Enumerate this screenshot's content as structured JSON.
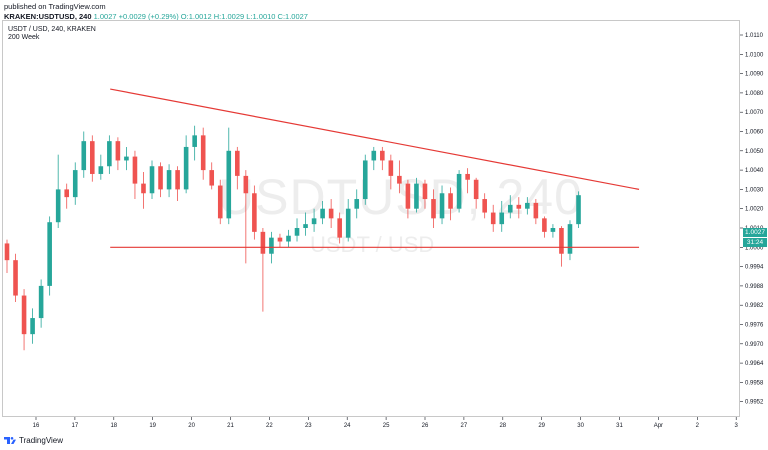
{
  "header": {
    "published": "published on TradingView.com",
    "symbol": "KRAKEN:USDTUSD, 240",
    "last": "1.0027",
    "change": "+0.0029 (+0.29%)",
    "ohlc": "O:1.0012 H:1.0029 L:1.0010 C:1.0027"
  },
  "legend": {
    "pair": "USDT / USD, 240, KRAKEN",
    "indicator": "200 Week"
  },
  "watermark": {
    "main": "USDTUSD, 240",
    "sub": "USDT / USD"
  },
  "brand": {
    "name": "TradingView",
    "icon": "tradingview-logo-icon"
  },
  "price_tag": "1.0027",
  "time_tag": "31:24",
  "colors": {
    "up": "#26a69a",
    "down": "#ef5350",
    "trendline": "#e53935",
    "axis": "#131722",
    "frame": "#c8c8c8"
  },
  "chart_data": {
    "type": "candlestick",
    "x_ticks": [
      "16",
      "17",
      "18",
      "19",
      "20",
      "21",
      "22",
      "23",
      "24",
      "25",
      "26",
      "27",
      "28",
      "29",
      "30",
      "31",
      "Apr",
      "2",
      "3"
    ],
    "y_ticks": [
      "1.0110",
      "1.0100",
      "1.0090",
      "1.0080",
      "1.0070",
      "1.0060",
      "1.0050",
      "1.0040",
      "1.0030",
      "1.0020",
      "1.0010",
      "1.0000",
      "0.9994",
      "0.9988",
      "0.9982",
      "0.9976",
      "0.9970",
      "0.9964",
      "0.9958",
      "0.9952"
    ],
    "candle_index_start": 0,
    "candles": [
      [
        1.0002,
        0.9996,
        1.0004,
        0.9992
      ],
      [
        0.9996,
        0.9985,
        0.9998,
        0.9983
      ],
      [
        0.9985,
        0.9973,
        0.9987,
        0.9968
      ],
      [
        0.9973,
        0.9978,
        0.9981,
        0.997
      ],
      [
        0.9978,
        0.9988,
        0.999,
        0.9975
      ],
      [
        0.9988,
        1.0013,
        1.0016,
        0.9985
      ],
      [
        1.0013,
        1.003,
        1.0048,
        1.001
      ],
      [
        1.003,
        1.0026,
        1.0033,
        1.002
      ],
      [
        1.0026,
        1.004,
        1.0044,
        1.0022
      ],
      [
        1.004,
        1.0055,
        1.006,
        1.0036
      ],
      [
        1.0055,
        1.0038,
        1.0058,
        1.0034
      ],
      [
        1.0038,
        1.0042,
        1.0048,
        1.0035
      ],
      [
        1.0042,
        1.0055,
        1.0058,
        1.0038
      ],
      [
        1.0055,
        1.0045,
        1.0057,
        1.004
      ],
      [
        1.0045,
        1.0047,
        1.0052,
        1.004
      ],
      [
        1.0047,
        1.0033,
        1.005,
        1.0025
      ],
      [
        1.0033,
        1.0028,
        1.0039,
        1.002
      ],
      [
        1.0028,
        1.0042,
        1.0045,
        1.0025
      ],
      [
        1.0042,
        1.003,
        1.0044,
        1.0026
      ],
      [
        1.003,
        1.004,
        1.0043,
        1.0026
      ],
      [
        1.004,
        1.003,
        1.0042,
        1.0024
      ],
      [
        1.003,
        1.0052,
        1.0058,
        1.0028
      ],
      [
        1.0052,
        1.0058,
        1.0063,
        1.0045
      ],
      [
        1.0058,
        1.004,
        1.0062,
        1.0035
      ],
      [
        1.004,
        1.0032,
        1.0044,
        1.003
      ],
      [
        1.0032,
        1.0015,
        1.0035,
        1.0012
      ],
      [
        1.0015,
        1.005,
        1.0062,
        1.0012
      ],
      [
        1.005,
        1.0037,
        1.0052,
        1.003
      ],
      [
        1.0037,
        1.0028,
        1.004,
        0.9995
      ],
      [
        1.0028,
        1.0008,
        1.0032,
        1.0004
      ],
      [
        1.0008,
        0.9998,
        1.001,
        0.998
      ],
      [
        0.9998,
        1.0005,
        1.0008,
        0.9995
      ],
      [
        1.0005,
        1.0003,
        1.0007,
        1.0
      ],
      [
        1.0003,
        1.0006,
        1.0009,
        1.0
      ],
      [
        1.0006,
        1.001,
        1.0015,
        1.0003
      ],
      [
        1.001,
        1.0012,
        1.0018,
        1.0006
      ],
      [
        1.0012,
        1.0015,
        1.002,
        1.0008
      ],
      [
        1.0015,
        1.002,
        1.0024,
        1.0012
      ],
      [
        1.002,
        1.0015,
        1.0025,
        1.001
      ],
      [
        1.0015,
        1.0005,
        1.0018,
        1.0002
      ],
      [
        1.0005,
        1.002,
        1.0025,
        1.0003
      ],
      [
        1.002,
        1.0025,
        1.003,
        1.0015
      ],
      [
        1.0025,
        1.0045,
        1.0048,
        1.0022
      ],
      [
        1.0045,
        1.005,
        1.0052,
        1.004
      ],
      [
        1.005,
        1.0045,
        1.0052,
        1.004
      ],
      [
        1.0045,
        1.0037,
        1.0048,
        1.003
      ],
      [
        1.0037,
        1.0033,
        1.0045,
        1.0028
      ],
      [
        1.0033,
        1.002,
        1.0035,
        1.0015
      ],
      [
        1.002,
        1.0033,
        1.0036,
        1.0018
      ],
      [
        1.0033,
        1.0025,
        1.0035,
        1.002
      ],
      [
        1.0025,
        1.0015,
        1.003,
        1.001
      ],
      [
        1.0015,
        1.0028,
        1.0032,
        1.0012
      ],
      [
        1.0028,
        1.002,
        1.0031,
        1.0014
      ],
      [
        1.002,
        1.0038,
        1.004,
        1.0018
      ],
      [
        1.0038,
        1.0035,
        1.0041,
        1.0028
      ],
      [
        1.0035,
        1.0025,
        1.0036,
        1.002
      ],
      [
        1.0025,
        1.0018,
        1.0028,
        1.0015
      ],
      [
        1.0018,
        1.0012,
        1.0022,
        1.0008
      ],
      [
        1.0012,
        1.0018,
        1.0024,
        1.0008
      ],
      [
        1.0018,
        1.0022,
        1.0027,
        1.0015
      ],
      [
        1.0022,
        1.002,
        1.0026,
        1.0015
      ],
      [
        1.002,
        1.0023,
        1.0026,
        1.0017
      ],
      [
        1.0023,
        1.0015,
        1.0025,
        1.0012
      ],
      [
        1.0015,
        1.0008,
        1.0016,
        1.0005
      ],
      [
        1.0008,
        1.001,
        1.0012,
        1.0005
      ],
      [
        1.001,
        0.9998,
        1.0011,
        0.9994
      ],
      [
        0.9998,
        1.0012,
        1.0014,
        0.9996
      ],
      [
        1.0012,
        1.0027,
        1.0029,
        1.001
      ]
    ],
    "trendlines": [
      {
        "name": "resistance",
        "from": [
          0.1435,
          1.0082
        ],
        "to": [
          0.8321,
          1.003
        ]
      },
      {
        "name": "support",
        "from": [
          0.1435,
          1.0
        ],
        "to": [
          0.8321,
          1.0
        ]
      }
    ]
  }
}
